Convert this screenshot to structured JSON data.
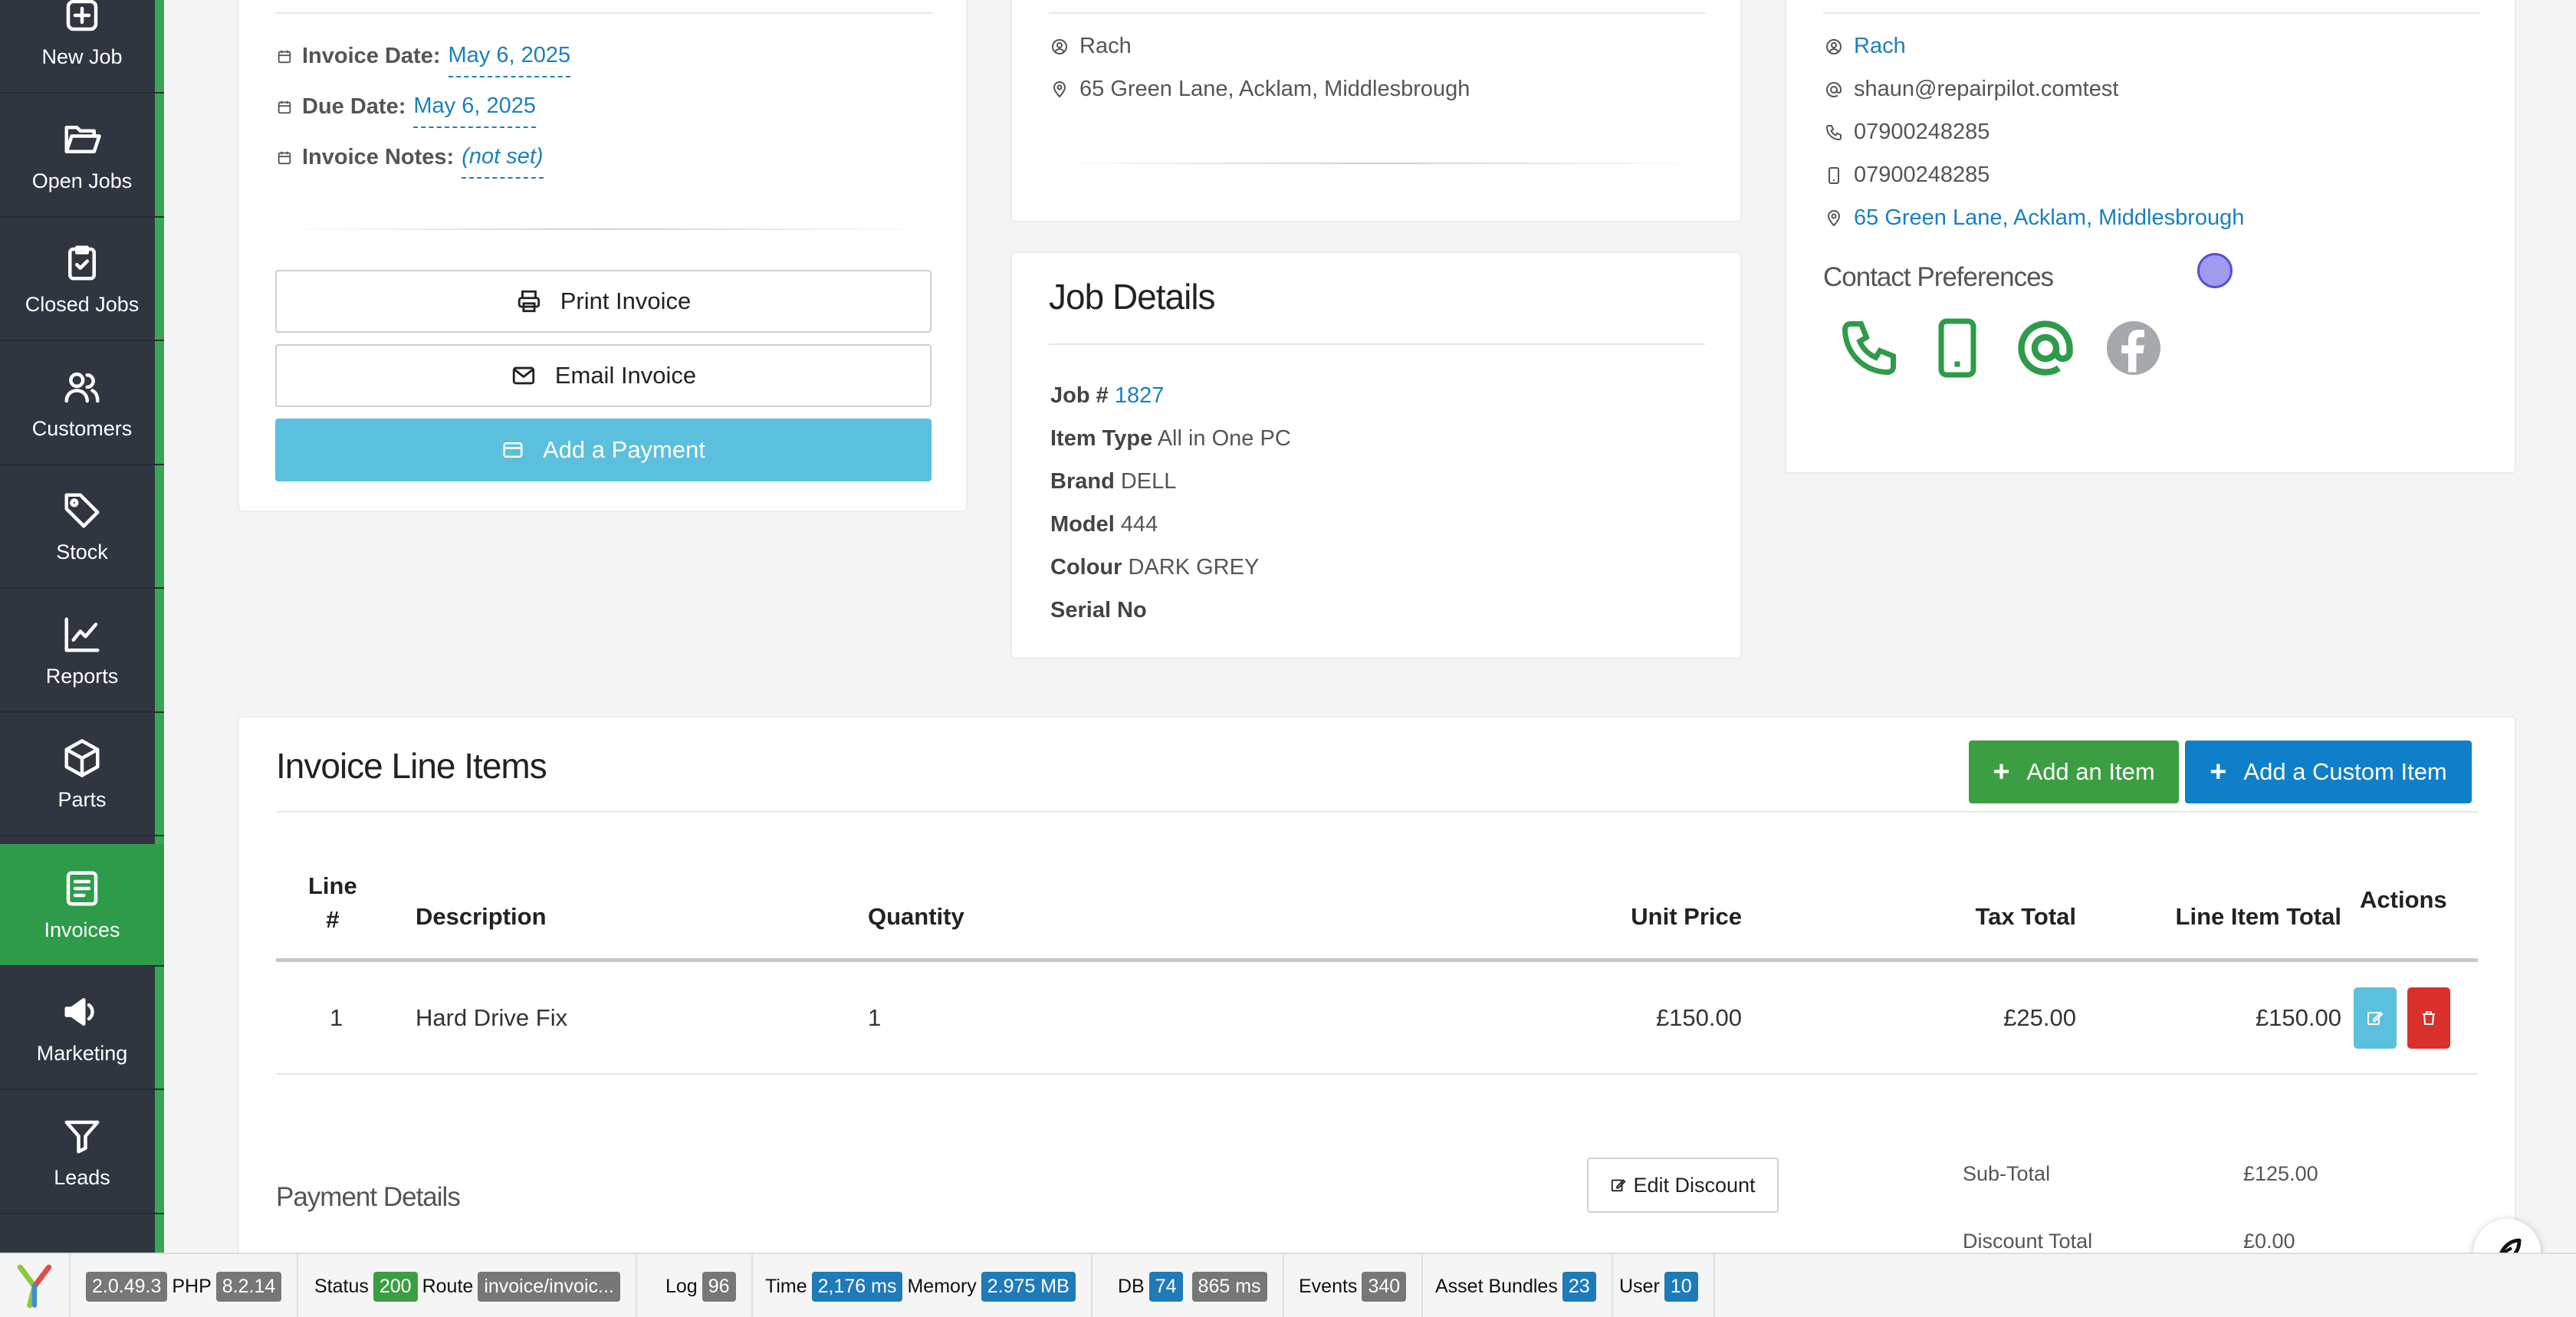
{
  "sidebar": {
    "items": [
      {
        "label": "New Job",
        "icon": "plus-square-icon"
      },
      {
        "label": "Open Jobs",
        "icon": "folder-open-icon"
      },
      {
        "label": "Closed Jobs",
        "icon": "clipboard-check-icon"
      },
      {
        "label": "Customers",
        "icon": "users-icon"
      },
      {
        "label": "Stock",
        "icon": "tag-icon"
      },
      {
        "label": "Reports",
        "icon": "line-chart-icon"
      },
      {
        "label": "Parts",
        "icon": "box-icon"
      },
      {
        "label": "Invoices",
        "icon": "invoice-icon",
        "active": true
      },
      {
        "label": "Marketing",
        "icon": "megaphone-icon"
      },
      {
        "label": "Leads",
        "icon": "funnel-icon"
      }
    ]
  },
  "invoice": {
    "date_label": "Invoice Date:",
    "date_value": "May 6, 2025",
    "due_label": "Due Date:",
    "due_value": "May 6, 2025",
    "notes_label": "Invoice Notes:",
    "notes_value": "(not set)",
    "print_button": "Print Invoice",
    "email_button": "Email Invoice",
    "payment_button": "Add a Payment"
  },
  "location": {
    "name": "Rach",
    "address": "65 Green Lane, Acklam, Middlesbrough"
  },
  "job_details": {
    "title": "Job Details",
    "job_label": "Job #",
    "job_number": "1827",
    "item_type_label": "Item Type",
    "item_type": "All in One PC",
    "brand_label": "Brand",
    "brand": "DELL",
    "model_label": "Model",
    "model": "444",
    "colour_label": "Colour",
    "colour": "DARK GREY",
    "serial_label": "Serial No"
  },
  "customer": {
    "name": "Rach",
    "email": "shaun@repairpilot.comtest",
    "phone": "07900248285",
    "mobile": "07900248285",
    "address": "65 Green Lane, Acklam, Middlesbrough",
    "prefs_title": "Contact Preferences",
    "prefs": [
      {
        "icon": "phone-icon",
        "enabled": true
      },
      {
        "icon": "mobile-icon",
        "enabled": true
      },
      {
        "icon": "at-email-icon",
        "enabled": true
      },
      {
        "icon": "facebook-icon",
        "enabled": false
      }
    ]
  },
  "line_items": {
    "title": "Invoice Line Items",
    "add_item_button": "Add an Item",
    "add_custom_button": "Add a Custom Item",
    "columns": {
      "line_top": "Line",
      "line_bottom": "#",
      "description": "Description",
      "quantity": "Quantity",
      "unit_price": "Unit Price",
      "tax_total": "Tax Total",
      "line_total": "Line Item Total",
      "actions": "Actions"
    },
    "rows": [
      {
        "line": "1",
        "description": "Hard Drive Fix",
        "quantity": "1",
        "unit_price": "£150.00",
        "tax_total": "£25.00",
        "line_total": "£150.00"
      }
    ]
  },
  "payment": {
    "title": "Payment Details",
    "edit_discount_button": "Edit Discount",
    "subtotal_label": "Sub-Total",
    "subtotal_value": "£125.00",
    "discount_label": "Discount Total",
    "discount_value": "£0.00"
  },
  "debug_bar": {
    "version": "2.0.49.3",
    "php_label": "PHP",
    "php_version": "8.2.14",
    "status_label": "Status",
    "status_value": "200",
    "route_label": "Route",
    "route_value": "invoice/invoic...",
    "log_label": "Log",
    "log_value": "96",
    "time_label": "Time",
    "time_value": "2,176 ms",
    "memory_label": "Memory",
    "memory_value": "2.975 MB",
    "db_label": "DB",
    "db_count": "74",
    "db_time": "865 ms",
    "events_label": "Events",
    "events_value": "340",
    "asset_label": "Asset Bundles",
    "asset_value": "23",
    "user_label": "User",
    "user_value": "10"
  },
  "colors": {
    "sidebar_bg": "#2f3640",
    "active_green": "#2e9b4a",
    "link_blue": "#1a7fc1",
    "info_button": "#5bc0de",
    "success_button": "#3c9e42",
    "primary_button": "#0f7fc9",
    "danger_button": "#d9302c"
  }
}
